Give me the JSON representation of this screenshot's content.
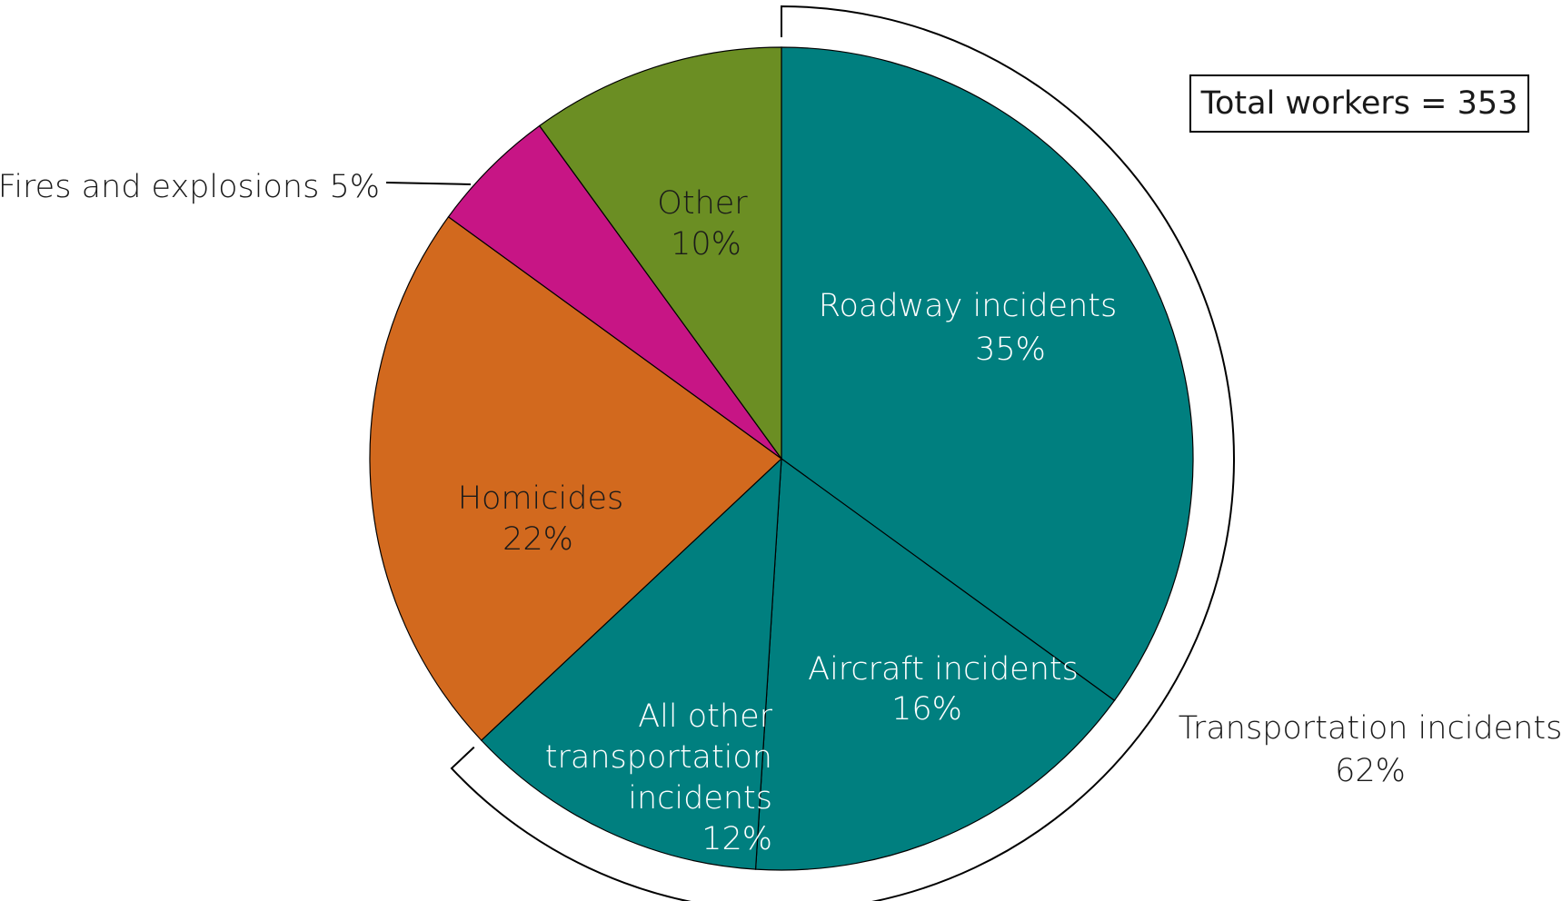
{
  "total_label": "Total workers = 353",
  "chart_data": {
    "type": "pie",
    "slices": [
      {
        "label": "Roadway incidents",
        "value": 35,
        "pct": "35%",
        "color": "#007f7f"
      },
      {
        "label": "Aircraft incidents",
        "value": 16,
        "pct": "16%",
        "color": "#007f7f"
      },
      {
        "label": "All other transportation incidents",
        "value": 12,
        "pct": "12%",
        "color": "#007f7f"
      },
      {
        "label": "Homicides",
        "value": 22,
        "pct": "22%",
        "color": "#d2691e"
      },
      {
        "label": "Fires and explosions",
        "value": 5,
        "pct": "5%",
        "color": "#c71585"
      },
      {
        "label": "Other",
        "value": 10,
        "pct": "10%",
        "color": "#6b8e23"
      }
    ],
    "group": {
      "label": "Transportation incidents",
      "value": 62,
      "pct": "62%"
    },
    "start_angle": "12 o'clock, clockwise"
  }
}
